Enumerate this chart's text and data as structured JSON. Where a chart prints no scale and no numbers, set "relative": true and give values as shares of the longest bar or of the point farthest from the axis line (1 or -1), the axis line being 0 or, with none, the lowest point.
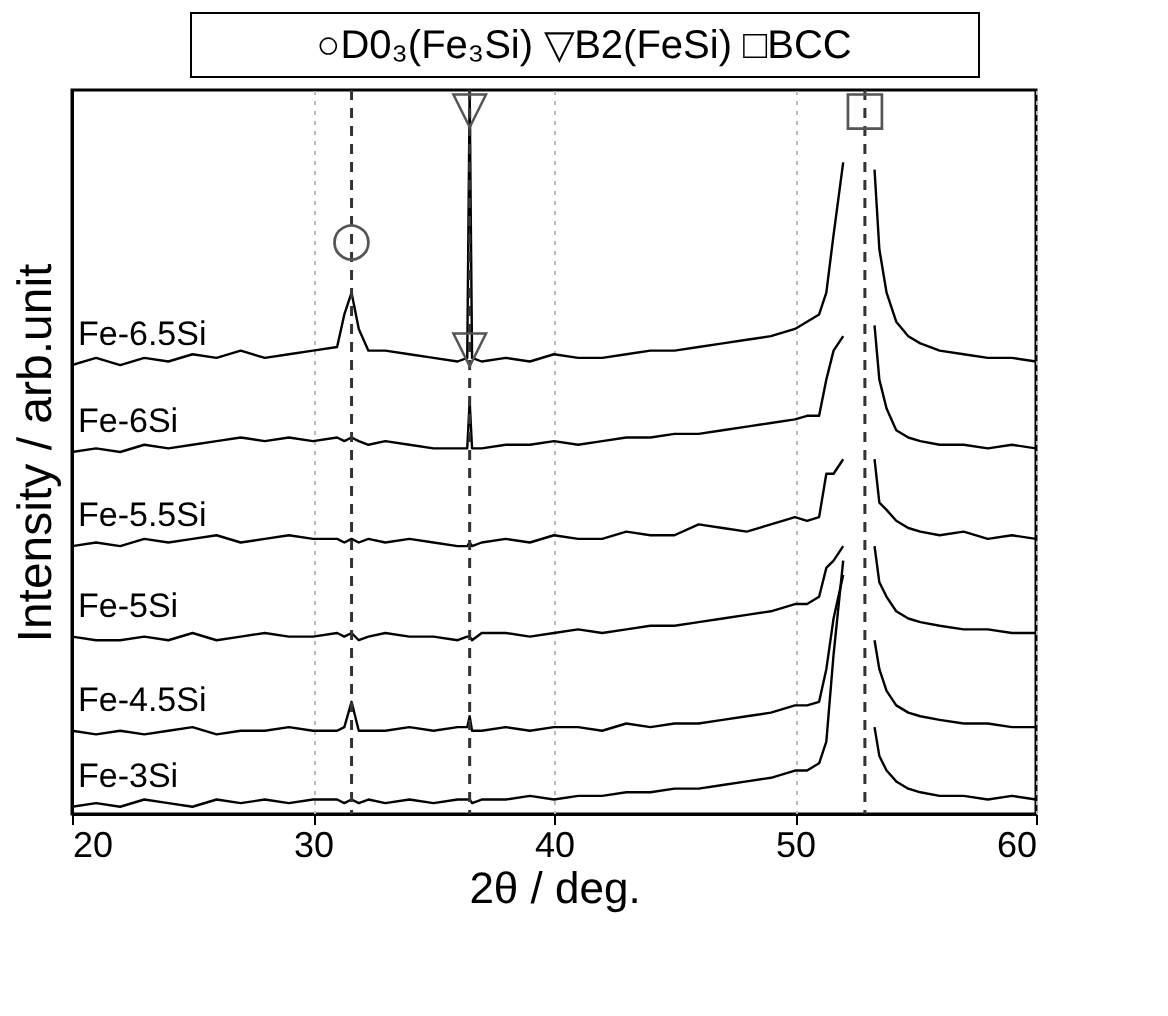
{
  "chart_data": {
    "type": "line",
    "relative": true,
    "xlabel": "2θ / deg.",
    "ylabel": "Intensity / arb.unit",
    "xlim": [
      20,
      60
    ],
    "xticks": [
      20,
      30,
      40,
      50,
      60
    ],
    "grid": "x",
    "legend": false,
    "line_style": "solid",
    "x": [
      20,
      21,
      22,
      23,
      24,
      25,
      26,
      27,
      28,
      29,
      30,
      31,
      31.3,
      31.6,
      31.9,
      32.3,
      33,
      34,
      35,
      36,
      36.4,
      36.5,
      36.6,
      37,
      38,
      39,
      40,
      41,
      42,
      43,
      44,
      45,
      46,
      47,
      48,
      49,
      50,
      50.5,
      51,
      51.3,
      51.6,
      52,
      52.4,
      53.3,
      53.5,
      53.8,
      54.2,
      54.7,
      55.2,
      56,
      57,
      58,
      59,
      60
    ],
    "series": [
      {
        "name": "Fe-6.5Si",
        "color": "#000000",
        "values": [
          0.62,
          0.63,
          0.62,
          0.63,
          0.625,
          0.635,
          0.63,
          0.64,
          0.63,
          0.635,
          0.64,
          0.645,
          0.69,
          0.72,
          0.67,
          0.64,
          0.64,
          0.635,
          0.63,
          0.625,
          0.63,
          1.0,
          0.63,
          0.625,
          0.63,
          0.625,
          0.635,
          0.63,
          0.63,
          0.635,
          0.64,
          0.64,
          0.645,
          0.65,
          0.655,
          0.66,
          0.67,
          0.68,
          0.69,
          0.72,
          0.8,
          0.9,
          null,
          0.89,
          0.78,
          0.72,
          0.68,
          0.66,
          0.65,
          0.64,
          0.635,
          0.63,
          0.63,
          0.625
        ]
      },
      {
        "name": "Fe-6Si",
        "color": "#000000",
        "values": [
          0.5,
          0.505,
          0.5,
          0.51,
          0.505,
          0.51,
          0.515,
          0.52,
          0.515,
          0.52,
          0.515,
          0.52,
          0.515,
          0.52,
          0.515,
          0.51,
          0.515,
          0.51,
          0.505,
          0.505,
          0.505,
          0.57,
          0.505,
          0.505,
          0.51,
          0.51,
          0.515,
          0.51,
          0.515,
          0.52,
          0.52,
          0.525,
          0.525,
          0.53,
          0.535,
          0.54,
          0.545,
          0.55,
          0.55,
          0.6,
          0.64,
          0.66,
          null,
          0.675,
          0.6,
          0.56,
          0.53,
          0.52,
          0.515,
          0.51,
          0.51,
          0.505,
          0.51,
          0.505
        ]
      },
      {
        "name": "Fe-5.5Si",
        "color": "#000000",
        "values": [
          0.37,
          0.375,
          0.37,
          0.38,
          0.375,
          0.38,
          0.385,
          0.375,
          0.38,
          0.385,
          0.38,
          0.38,
          0.375,
          0.38,
          0.375,
          0.38,
          0.375,
          0.38,
          0.375,
          0.37,
          0.37,
          0.375,
          0.37,
          0.375,
          0.38,
          0.375,
          0.385,
          0.38,
          0.38,
          0.39,
          0.385,
          0.385,
          0.4,
          0.395,
          0.39,
          0.4,
          0.41,
          0.405,
          0.41,
          0.47,
          0.47,
          0.49,
          null,
          0.49,
          0.43,
          0.42,
          0.405,
          0.395,
          0.39,
          0.385,
          0.39,
          0.38,
          0.385,
          0.38
        ]
      },
      {
        "name": "Fe-5Si",
        "color": "#000000",
        "values": [
          0.245,
          0.24,
          0.24,
          0.245,
          0.24,
          0.25,
          0.24,
          0.245,
          0.25,
          0.245,
          0.245,
          0.25,
          0.245,
          0.25,
          0.24,
          0.245,
          0.25,
          0.245,
          0.245,
          0.24,
          0.245,
          0.245,
          0.24,
          0.25,
          0.25,
          0.245,
          0.25,
          0.255,
          0.25,
          0.255,
          0.26,
          0.26,
          0.265,
          0.27,
          0.275,
          0.28,
          0.29,
          0.29,
          0.3,
          0.34,
          0.35,
          0.37,
          null,
          0.37,
          0.32,
          0.3,
          0.28,
          0.27,
          0.265,
          0.26,
          0.255,
          0.255,
          0.25,
          0.25
        ]
      },
      {
        "name": "Fe-4.5Si",
        "color": "#000000",
        "values": [
          0.115,
          0.11,
          0.115,
          0.11,
          0.115,
          0.12,
          0.11,
          0.115,
          0.115,
          0.12,
          0.115,
          0.115,
          0.12,
          0.155,
          0.115,
          0.115,
          0.115,
          0.12,
          0.115,
          0.12,
          0.12,
          0.135,
          0.115,
          0.115,
          0.12,
          0.115,
          0.12,
          0.12,
          0.115,
          0.125,
          0.12,
          0.125,
          0.125,
          0.13,
          0.135,
          0.14,
          0.15,
          0.15,
          0.155,
          0.2,
          0.27,
          0.33,
          null,
          0.24,
          0.2,
          0.17,
          0.15,
          0.14,
          0.135,
          0.13,
          0.125,
          0.125,
          0.12,
          0.12
        ]
      },
      {
        "name": "Fe-3Si",
        "color": "#000000",
        "values": [
          0.01,
          0.015,
          0.01,
          0.02,
          0.015,
          0.01,
          0.02,
          0.015,
          0.02,
          0.015,
          0.02,
          0.02,
          0.015,
          0.02,
          0.015,
          0.02,
          0.015,
          0.02,
          0.015,
          0.02,
          0.02,
          0.02,
          0.015,
          0.02,
          0.02,
          0.025,
          0.02,
          0.025,
          0.025,
          0.03,
          0.03,
          0.035,
          0.035,
          0.04,
          0.045,
          0.05,
          0.06,
          0.06,
          0.07,
          0.1,
          0.22,
          0.35,
          null,
          0.12,
          0.08,
          0.06,
          0.045,
          0.035,
          0.03,
          0.025,
          0.025,
          0.02,
          0.025,
          0.02
        ]
      }
    ],
    "ref_lines": [
      {
        "axis": "x",
        "value": 31.6,
        "line_style": "dashed",
        "color": "#333333"
      },
      {
        "axis": "x",
        "value": 36.5,
        "line_style": "dashed",
        "color": "#333333"
      },
      {
        "axis": "x",
        "value": 52.9,
        "line_style": "dashed",
        "color": "#333333"
      }
    ],
    "annotations": [
      "○D0₃(Fe₃Si) ▽B2(FeSi) □BCC",
      {
        "text": "○",
        "x": 31.6,
        "y": 0.72
      },
      {
        "text": "▽",
        "x": 36.5,
        "y": 1.0
      },
      {
        "text": "▽",
        "x": 36.5,
        "y": 0.57
      },
      {
        "text": "□",
        "x": 52.9,
        "y": 1.0
      }
    ]
  }
}
